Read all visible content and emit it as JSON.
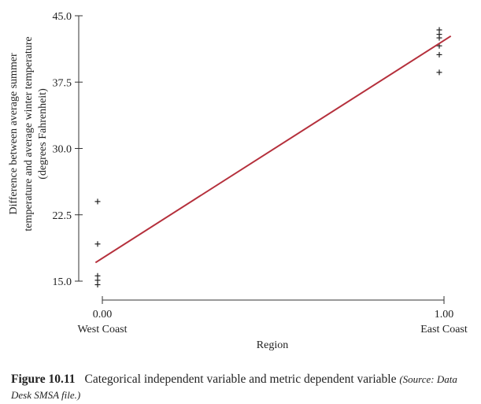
{
  "chart_data": {
    "type": "scatter",
    "xlabel": "Region",
    "ylabel_lines": [
      "Difference between average summer",
      "temperature and average winter temperature",
      "(degrees Fahrenheit)"
    ],
    "x_ticks": [
      {
        "value": 0,
        "label": "0.00",
        "sublabel": "West Coast"
      },
      {
        "value": 1,
        "label": "1.00",
        "sublabel": "East Coast"
      }
    ],
    "y_ticks": [
      {
        "value": 15.0,
        "label": "15.0"
      },
      {
        "value": 22.5,
        "label": "22.5"
      },
      {
        "value": 30.0,
        "label": "30.0"
      },
      {
        "value": 37.5,
        "label": "37.5"
      },
      {
        "value": 45.0,
        "label": "45.0"
      }
    ],
    "xlim": [
      0,
      1
    ],
    "ylim": [
      15,
      45
    ],
    "points": [
      {
        "x": 0,
        "y": 24.0
      },
      {
        "x": 0,
        "y": 19.2
      },
      {
        "x": 0,
        "y": 15.6
      },
      {
        "x": 0,
        "y": 15.1
      },
      {
        "x": 0,
        "y": 14.6
      },
      {
        "x": 1,
        "y": 43.4
      },
      {
        "x": 1,
        "y": 42.9
      },
      {
        "x": 1,
        "y": 42.5
      },
      {
        "x": 1,
        "y": 41.6
      },
      {
        "x": 1,
        "y": 40.6
      },
      {
        "x": 1,
        "y": 38.6
      }
    ],
    "regression_line": {
      "x": [
        -0.02,
        1.02
      ],
      "y": [
        17.1,
        42.7
      ],
      "color": "#b5303c"
    },
    "marker": "+",
    "grid": false
  },
  "caption": {
    "figure_number": "Figure 10.11",
    "text": "Categorical independent variable and metric dependent variable",
    "source": "(Source: Data Desk SMSA file.)"
  }
}
